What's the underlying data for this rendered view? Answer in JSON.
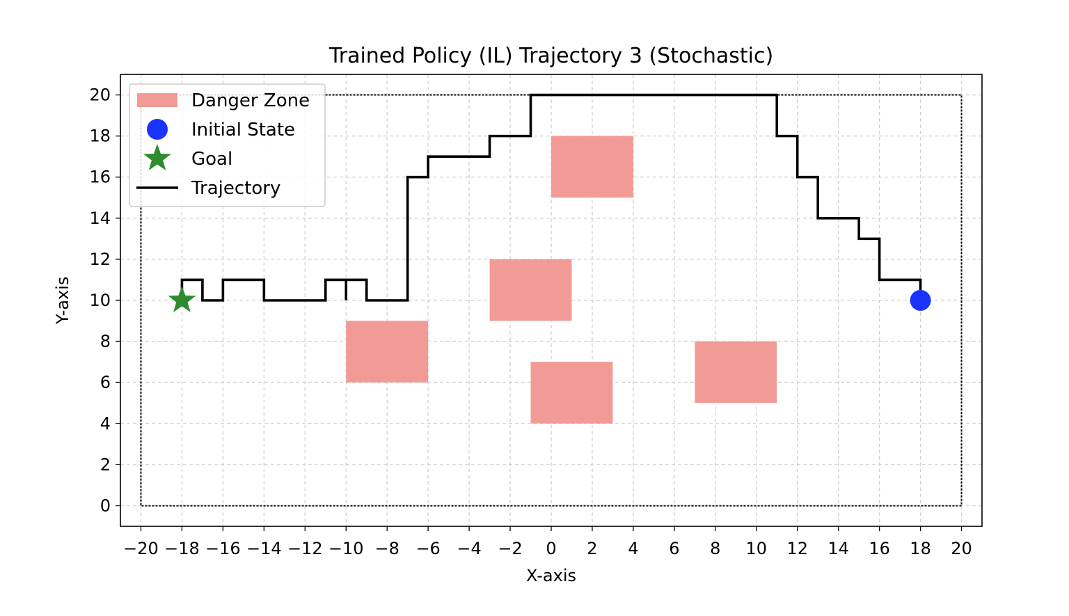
{
  "chart_data": {
    "type": "line",
    "title": "Trained Policy (IL) Trajectory 3 (Stochastic)",
    "xlabel": "X-axis",
    "ylabel": "Y-axis",
    "xlim": [
      -21,
      21
    ],
    "ylim": [
      -1,
      21
    ],
    "xticks": [
      -20,
      -18,
      -16,
      -14,
      -12,
      -10,
      -8,
      -6,
      -4,
      -2,
      0,
      2,
      4,
      6,
      8,
      10,
      12,
      14,
      16,
      18,
      20
    ],
    "xtick_labels": [
      "−20",
      "−18",
      "−16",
      "−14",
      "−12",
      "−10",
      "−8",
      "−6",
      "−4",
      "−2",
      "0",
      "2",
      "4",
      "6",
      "8",
      "10",
      "12",
      "14",
      "16",
      "18",
      "20"
    ],
    "yticks": [
      0,
      2,
      4,
      6,
      8,
      10,
      12,
      14,
      16,
      18,
      20
    ],
    "ytick_labels": [
      "0",
      "2",
      "4",
      "6",
      "8",
      "10",
      "12",
      "14",
      "16",
      "18",
      "20"
    ],
    "grid": true,
    "legend_position": "top-left",
    "boundary": {
      "x": [
        -20,
        20
      ],
      "y": [
        0,
        20
      ]
    },
    "danger_zones": [
      {
        "x": [
          -10,
          -6
        ],
        "y": [
          6,
          9
        ]
      },
      {
        "x": [
          -3,
          1
        ],
        "y": [
          9,
          12
        ]
      },
      {
        "x": [
          -1,
          3
        ],
        "y": [
          4,
          7
        ]
      },
      {
        "x": [
          0,
          4
        ],
        "y": [
          15,
          18
        ]
      },
      {
        "x": [
          7,
          11
        ],
        "y": [
          5,
          8
        ]
      }
    ],
    "initial_state": {
      "x": 18,
      "y": 10
    },
    "goal": {
      "x": -18,
      "y": 10
    },
    "trajectory": {
      "x": [
        18,
        18,
        16,
        16,
        15,
        15,
        13,
        13,
        12,
        12,
        11,
        11,
        -1,
        -1,
        -3,
        -3,
        -6,
        -6,
        -7,
        -7,
        -9,
        -9,
        -10,
        -10,
        -10,
        -11,
        -11,
        -14,
        -14,
        -16,
        -16,
        -17,
        -17,
        -18,
        -18
      ],
      "y": [
        10,
        11,
        11,
        13,
        13,
        14,
        14,
        16,
        16,
        18,
        18,
        20,
        20,
        18,
        18,
        17,
        17,
        16,
        16,
        10,
        10,
        11,
        11,
        10,
        11,
        11,
        10,
        10,
        11,
        11,
        10,
        10,
        11,
        11,
        10
      ]
    },
    "colors": {
      "danger_zone": "#f29b96",
      "initial_state": "#1a33ff",
      "goal": "#2e8b2e",
      "trajectory": "#000000",
      "grid": "#d0d0d0"
    },
    "legend": [
      {
        "key": "danger",
        "label": "Danger Zone"
      },
      {
        "key": "initial",
        "label": "Initial State"
      },
      {
        "key": "goal",
        "label": "Goal"
      },
      {
        "key": "trajectory",
        "label": "Trajectory"
      }
    ]
  }
}
